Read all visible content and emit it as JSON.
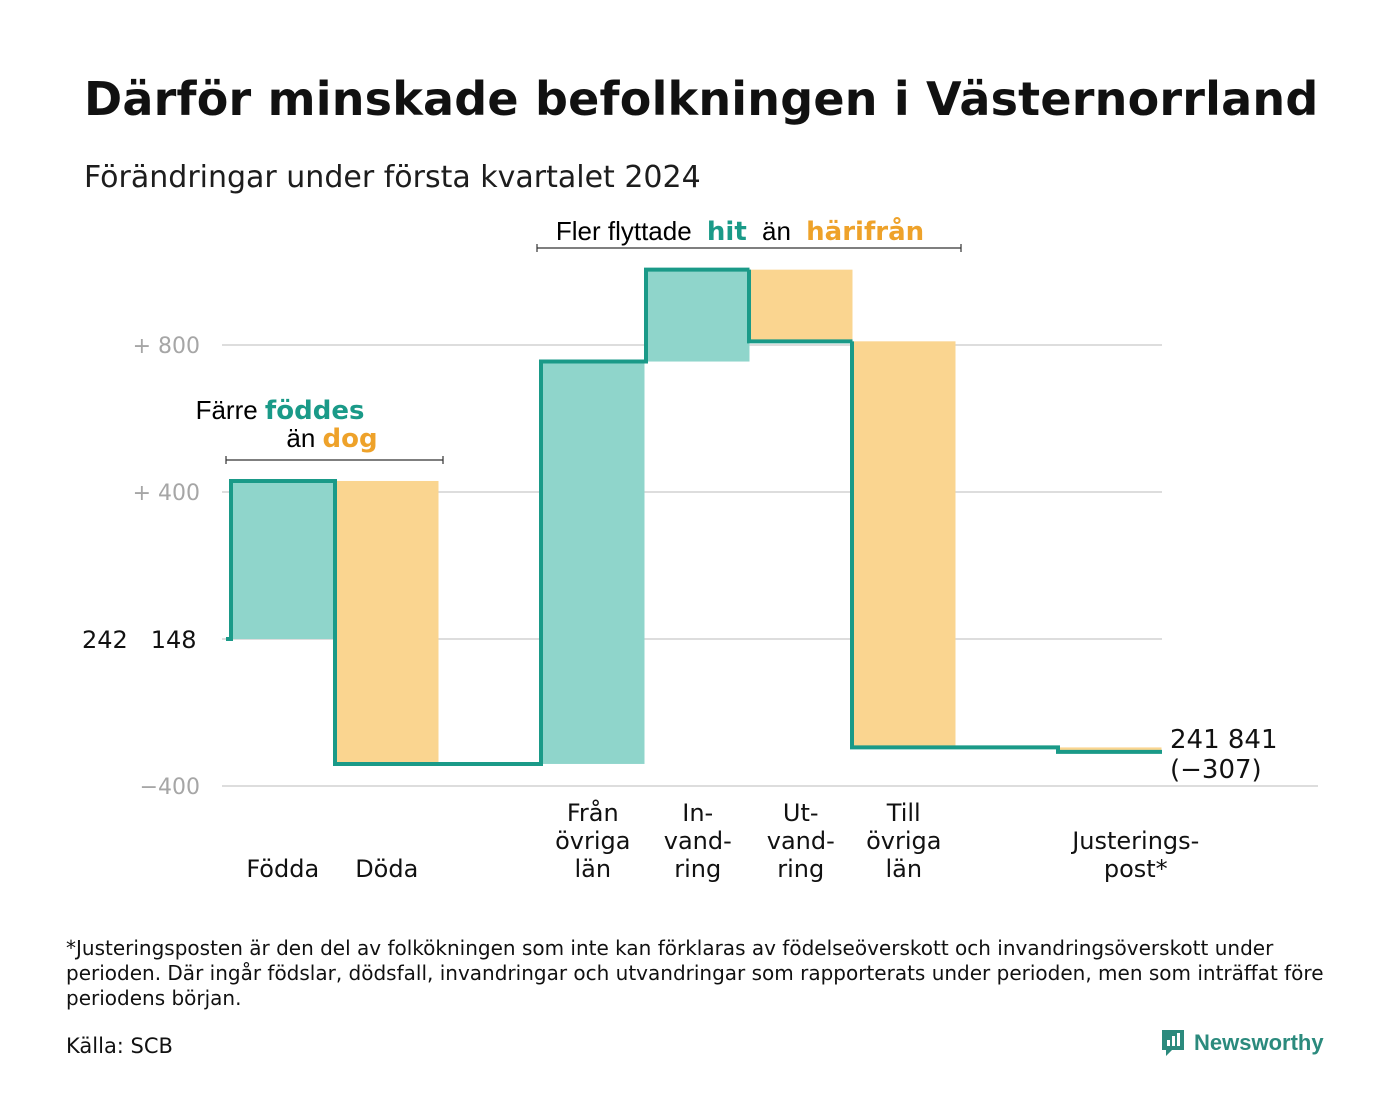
{
  "title": "Därför minskade befolkningen i Västernorrland",
  "subtitle": "Förändringar under första kvartalet 2024",
  "colors": {
    "positive": "#8fd5cb",
    "negative": "#fad590",
    "line": "#1a9a88",
    "grid": "#dddddd",
    "tick": "#a6a6a6",
    "teal_text": "#1a9a88",
    "orange_text": "#eea22a",
    "brand": "#2b8a7d"
  },
  "annotations": {
    "births_deaths": {
      "prefix": "Färre",
      "teal_word": "föddes",
      "middle": "än",
      "orange_word": "dog"
    },
    "migration": {
      "prefix": "Fler flyttade",
      "teal_word": "hit",
      "middle": "än",
      "orange_word": "härifrån"
    }
  },
  "end_label": {
    "line1": "241 841",
    "line2": "(−307)"
  },
  "chart_data": {
    "type": "waterfall",
    "title": "Därför minskade befolkningen i Västernorrland",
    "subtitle": "Förändringar under första kvartalet 2024",
    "start_value": 242148,
    "start_label": "242   148",
    "end_value": 241841,
    "net_change": -307,
    "yticks": [
      {
        "value": 800,
        "label": "+  800"
      },
      {
        "value": 400,
        "label": "+  400"
      },
      {
        "value": -400,
        "label": "−400"
      }
    ],
    "ylim": [
      -400,
      1010
    ],
    "grid": true,
    "categories": [
      [
        "Födda"
      ],
      [
        "Döda"
      ],
      [
        "Från",
        "övriga",
        "län"
      ],
      [
        "In-",
        "vand-",
        "ring"
      ],
      [
        "Ut-",
        "vand-",
        "ring"
      ],
      [
        "Till",
        "övriga",
        "län"
      ],
      [
        "Justerings-",
        "post*"
      ]
    ],
    "values": [
      430,
      -770,
      1095,
      250,
      -195,
      -1105,
      -12
    ]
  },
  "footnote": "*Justeringsposten är den del av folkökningen som inte kan förklaras av födelseöverskott och invandringsöverskott under perioden. Där ingår födslar, dödsfall, invandringar och utvandringar som rapporterats under perioden, men som inträffat före periodens början.",
  "source": "Källa: SCB",
  "brand": "Newsworthy"
}
